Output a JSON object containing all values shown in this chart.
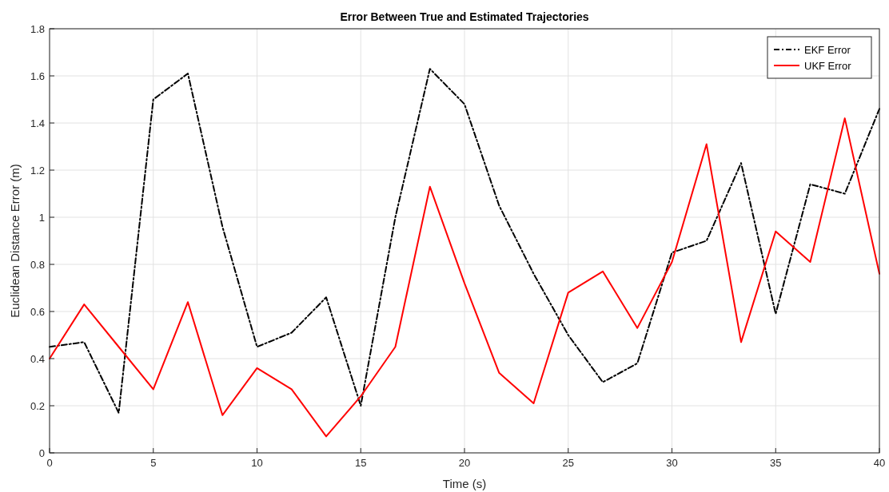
{
  "chart_data": {
    "type": "line",
    "title": "Error Between True and Estimated Trajectories",
    "xlabel": "Time (s)",
    "ylabel": "Euclidean Distance Error (m)",
    "x": [
      0,
      1.667,
      3.333,
      5,
      6.667,
      8.333,
      10,
      11.667,
      13.333,
      15,
      16.667,
      18.333,
      20,
      21.667,
      23.333,
      25,
      26.667,
      28.333,
      30,
      31.667,
      33.333,
      35,
      36.667,
      38.333,
      40
    ],
    "series": [
      {
        "name": "EKF Error",
        "color": "#000000",
        "line_style": "dashed",
        "values": [
          0.45,
          0.47,
          0.17,
          1.5,
          1.61,
          0.96,
          0.45,
          0.51,
          0.66,
          0.2,
          1.0,
          1.63,
          1.48,
          1.05,
          0.76,
          0.5,
          0.3,
          0.38,
          0.85,
          0.9,
          1.23,
          0.59,
          1.14,
          1.1,
          1.46
        ]
      },
      {
        "name": "UKF Error",
        "color": "#ff0000",
        "line_style": "solid",
        "values": [
          0.4,
          0.63,
          0.45,
          0.27,
          0.64,
          0.16,
          0.36,
          0.27,
          0.07,
          0.24,
          0.45,
          1.13,
          0.72,
          0.34,
          0.21,
          0.68,
          0.77,
          0.53,
          0.81,
          1.31,
          0.47,
          0.94,
          0.81,
          1.42,
          0.76
        ]
      }
    ],
    "xlim": [
      0,
      40
    ],
    "xticks": [
      0,
      5,
      10,
      15,
      20,
      25,
      30,
      35,
      40
    ],
    "ylim": [
      0,
      1.8
    ],
    "yticks": [
      0,
      0.2,
      0.4,
      0.6,
      0.8,
      1,
      1.2,
      1.4,
      1.6,
      1.8
    ],
    "grid": true,
    "legend": "top right",
    "marker": "none"
  }
}
